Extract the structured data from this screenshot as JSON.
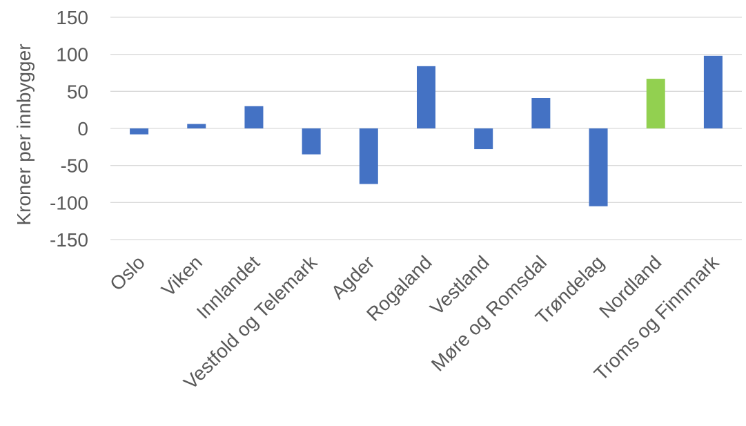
{
  "chart_data": {
    "type": "bar",
    "title": "",
    "xlabel": "",
    "ylabel": "Kroner per innbygger",
    "ylim": [
      -150,
      150
    ],
    "yticks": [
      150,
      100,
      50,
      0,
      -50,
      -100,
      -150
    ],
    "grid": true,
    "legend": "none",
    "categories": [
      "Oslo",
      "Viken",
      "Innlandet",
      "Vestfold og Telemark",
      "Agder",
      "Rogaland",
      "Vestland",
      "Møre og Romsdal",
      "Trøndelag",
      "Nordland",
      "Troms og Finnmark"
    ],
    "values": [
      -8,
      6,
      30,
      -35,
      -75,
      84,
      -28,
      41,
      -105,
      67,
      98
    ],
    "colors": {
      "default": "#4472c4",
      "highlight": "#92d050",
      "highlight_category": "Nordland"
    }
  }
}
